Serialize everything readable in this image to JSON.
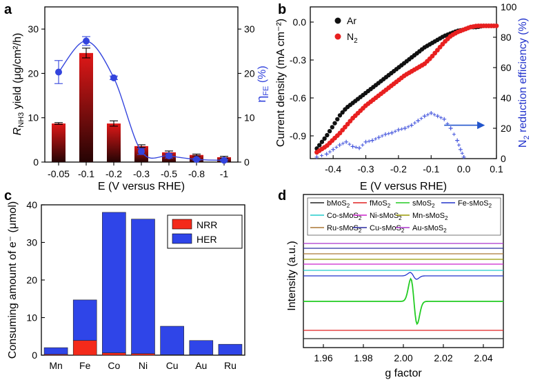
{
  "panel_labels": [
    "a",
    "b",
    "c",
    "d"
  ],
  "chart_data": [
    {
      "panel": "a",
      "type": "bar",
      "categories": [
        "-0.05",
        "-0.1",
        "-0.2",
        "-0.3",
        "-0.5",
        "-0.8",
        "-1"
      ],
      "values": [
        8.7,
        24.6,
        8.7,
        3.6,
        2.2,
        1.6,
        1.1
      ],
      "errors": [
        0.2,
        1.1,
        0.6,
        0.3,
        0.3,
        0.2,
        0.2
      ],
      "fe_values": [
        20.3,
        27.3,
        19.0,
        2.4,
        1.4,
        0.6,
        0.4
      ],
      "fe_errors": [
        2.6,
        1.0,
        0.4,
        0.7,
        0.5,
        0.2,
        0.2
      ],
      "xlabel": "E (V versus RHE)",
      "ylabel_pre": "R",
      "ylabel_sub": "NH3",
      "ylabel_post": " yield (μg/cm²/h)",
      "y2label_pre": "η",
      "y2label_sub": "FE",
      "y2label_post": " (%)",
      "ylim": [
        0,
        35
      ],
      "yticks": [
        "0",
        "10",
        "20",
        "30"
      ],
      "bar_color": "#cc1a1a",
      "fe_color": "#3344dd"
    },
    {
      "panel": "b",
      "type": "scatter",
      "series": [
        {
          "name": "Ar",
          "color": "#111111",
          "x": [
            -0.45,
            -0.42,
            -0.4,
            -0.38,
            -0.36,
            -0.34,
            -0.32,
            -0.3,
            -0.28,
            -0.26,
            -0.24,
            -0.22,
            -0.2,
            -0.18,
            -0.16,
            -0.14,
            -0.12,
            -0.1,
            -0.08,
            -0.06,
            -0.04,
            -0.02,
            0.0,
            0.02,
            0.04,
            0.06,
            0.08,
            0.1
          ],
          "y": [
            -1.0,
            -0.9,
            -0.82,
            -0.74,
            -0.68,
            -0.64,
            -0.6,
            -0.56,
            -0.52,
            -0.48,
            -0.44,
            -0.4,
            -0.36,
            -0.32,
            -0.28,
            -0.24,
            -0.2,
            -0.17,
            -0.14,
            -0.11,
            -0.09,
            -0.07,
            -0.06,
            -0.04,
            -0.04,
            -0.03,
            -0.03,
            -0.03
          ]
        },
        {
          "name": "N",
          "name_sub": "2",
          "color": "#e82020",
          "x": [
            -0.45,
            -0.42,
            -0.4,
            -0.38,
            -0.36,
            -0.34,
            -0.32,
            -0.3,
            -0.28,
            -0.26,
            -0.24,
            -0.22,
            -0.2,
            -0.18,
            -0.16,
            -0.14,
            -0.12,
            -0.1,
            -0.08,
            -0.06,
            -0.04,
            -0.02,
            0.0,
            0.02,
            0.04,
            0.06,
            0.08,
            0.1
          ],
          "y": [
            -1.03,
            -0.98,
            -0.93,
            -0.88,
            -0.82,
            -0.76,
            -0.71,
            -0.66,
            -0.62,
            -0.58,
            -0.54,
            -0.5,
            -0.46,
            -0.42,
            -0.39,
            -0.36,
            -0.33,
            -0.28,
            -0.22,
            -0.16,
            -0.11,
            -0.08,
            -0.06,
            -0.04,
            -0.03,
            -0.03,
            -0.03,
            -0.03
          ]
        }
      ],
      "fe_series": {
        "color": "#4455dd",
        "x": [
          -0.45,
          -0.42,
          -0.4,
          -0.38,
          -0.36,
          -0.34,
          -0.32,
          -0.3,
          -0.28,
          -0.26,
          -0.24,
          -0.22,
          -0.2,
          -0.18,
          -0.16,
          -0.14,
          -0.12,
          -0.1,
          -0.08,
          -0.06,
          -0.04,
          -0.02,
          -0.01,
          0.0
        ],
        "y": [
          1,
          3,
          6,
          9,
          11,
          8,
          7,
          11,
          12,
          14,
          16,
          17,
          19,
          20,
          22,
          25,
          28,
          30,
          28,
          26,
          20,
          12,
          6,
          1
        ]
      },
      "arrow_color": "#2255cc",
      "xlabel": "E (V versus RHE)",
      "ylabel": "Current density (mA cm⁻²)",
      "y2label_pre": "N",
      "y2label_sub": "2",
      "y2label_post": " reduction efficiency (%)",
      "xlim": [
        -0.47,
        0.1
      ],
      "ylim": [
        -1.08,
        0.12
      ],
      "y2lim": [
        0,
        100
      ],
      "xticks": [
        "-0.4",
        "-0.3",
        "-0.2",
        "-0.1",
        "0.0",
        "0.1"
      ],
      "yticks": [
        "0.0",
        "-0.3",
        "-0.6",
        "-0.9"
      ],
      "y2ticks": [
        "0",
        "20",
        "40",
        "60",
        "80",
        "100"
      ]
    },
    {
      "panel": "c",
      "type": "bar",
      "categories": [
        "Mn",
        "Fe",
        "Co",
        "Ni",
        "Cu",
        "Au",
        "Ru"
      ],
      "series": [
        {
          "name": "NRR",
          "color": "#f42a1a",
          "values": [
            0.2,
            3.9,
            0.6,
            0.4,
            0.1,
            0.1,
            0.1
          ]
        },
        {
          "name": "HER",
          "color": "#2f45e8",
          "values": [
            1.8,
            10.8,
            37.4,
            35.8,
            7.6,
            3.8,
            2.8
          ]
        }
      ],
      "ylabel": "Consuming amount of e⁻ (μmol)",
      "ylim": [
        0,
        40
      ],
      "yticks": [
        "0",
        "10",
        "20",
        "30",
        "40"
      ]
    },
    {
      "panel": "d",
      "type": "line",
      "xlabel": "g factor",
      "ylabel": "Intensity (a.u.)",
      "xlim": [
        1.95,
        2.05
      ],
      "xticks": [
        "1.96",
        "1.98",
        "2.00",
        "2.02",
        "2.04"
      ],
      "series": [
        {
          "name": "bMoS",
          "sub": "2",
          "post": "",
          "color": "#222222"
        },
        {
          "name": "fMoS",
          "sub": "2",
          "post": "",
          "color": "#e02020"
        },
        {
          "name": "sMoS",
          "sub": "2",
          "post": "",
          "color": "#22cc22",
          "feature": {
            "center": 2.0053,
            "amp": 1.0
          }
        },
        {
          "name": "Fe-sMoS",
          "sub": "2",
          "post": "",
          "color": "#2233cc",
          "feature": {
            "center": 2.005,
            "amp": 0.15
          }
        },
        {
          "name": "Co-sMoS",
          "sub": "2",
          "post": "",
          "color": "#22cccc"
        },
        {
          "name": "Ni-sMoS",
          "sub": "2",
          "post": "",
          "color": "#cc22cc"
        },
        {
          "name": "Mn-sMoS",
          "sub": "2",
          "post": "",
          "color": "#999900"
        },
        {
          "name": "Ru-sMoS",
          "sub": "2",
          "post": "",
          "color": "#aa7733"
        },
        {
          "name": "Cu-sMoS",
          "sub": "2",
          "post": "",
          "color": "#2a2aa0"
        },
        {
          "name": "Au-sMoS",
          "sub": "2",
          "post": "",
          "color": "#aa33cc"
        }
      ]
    }
  ]
}
